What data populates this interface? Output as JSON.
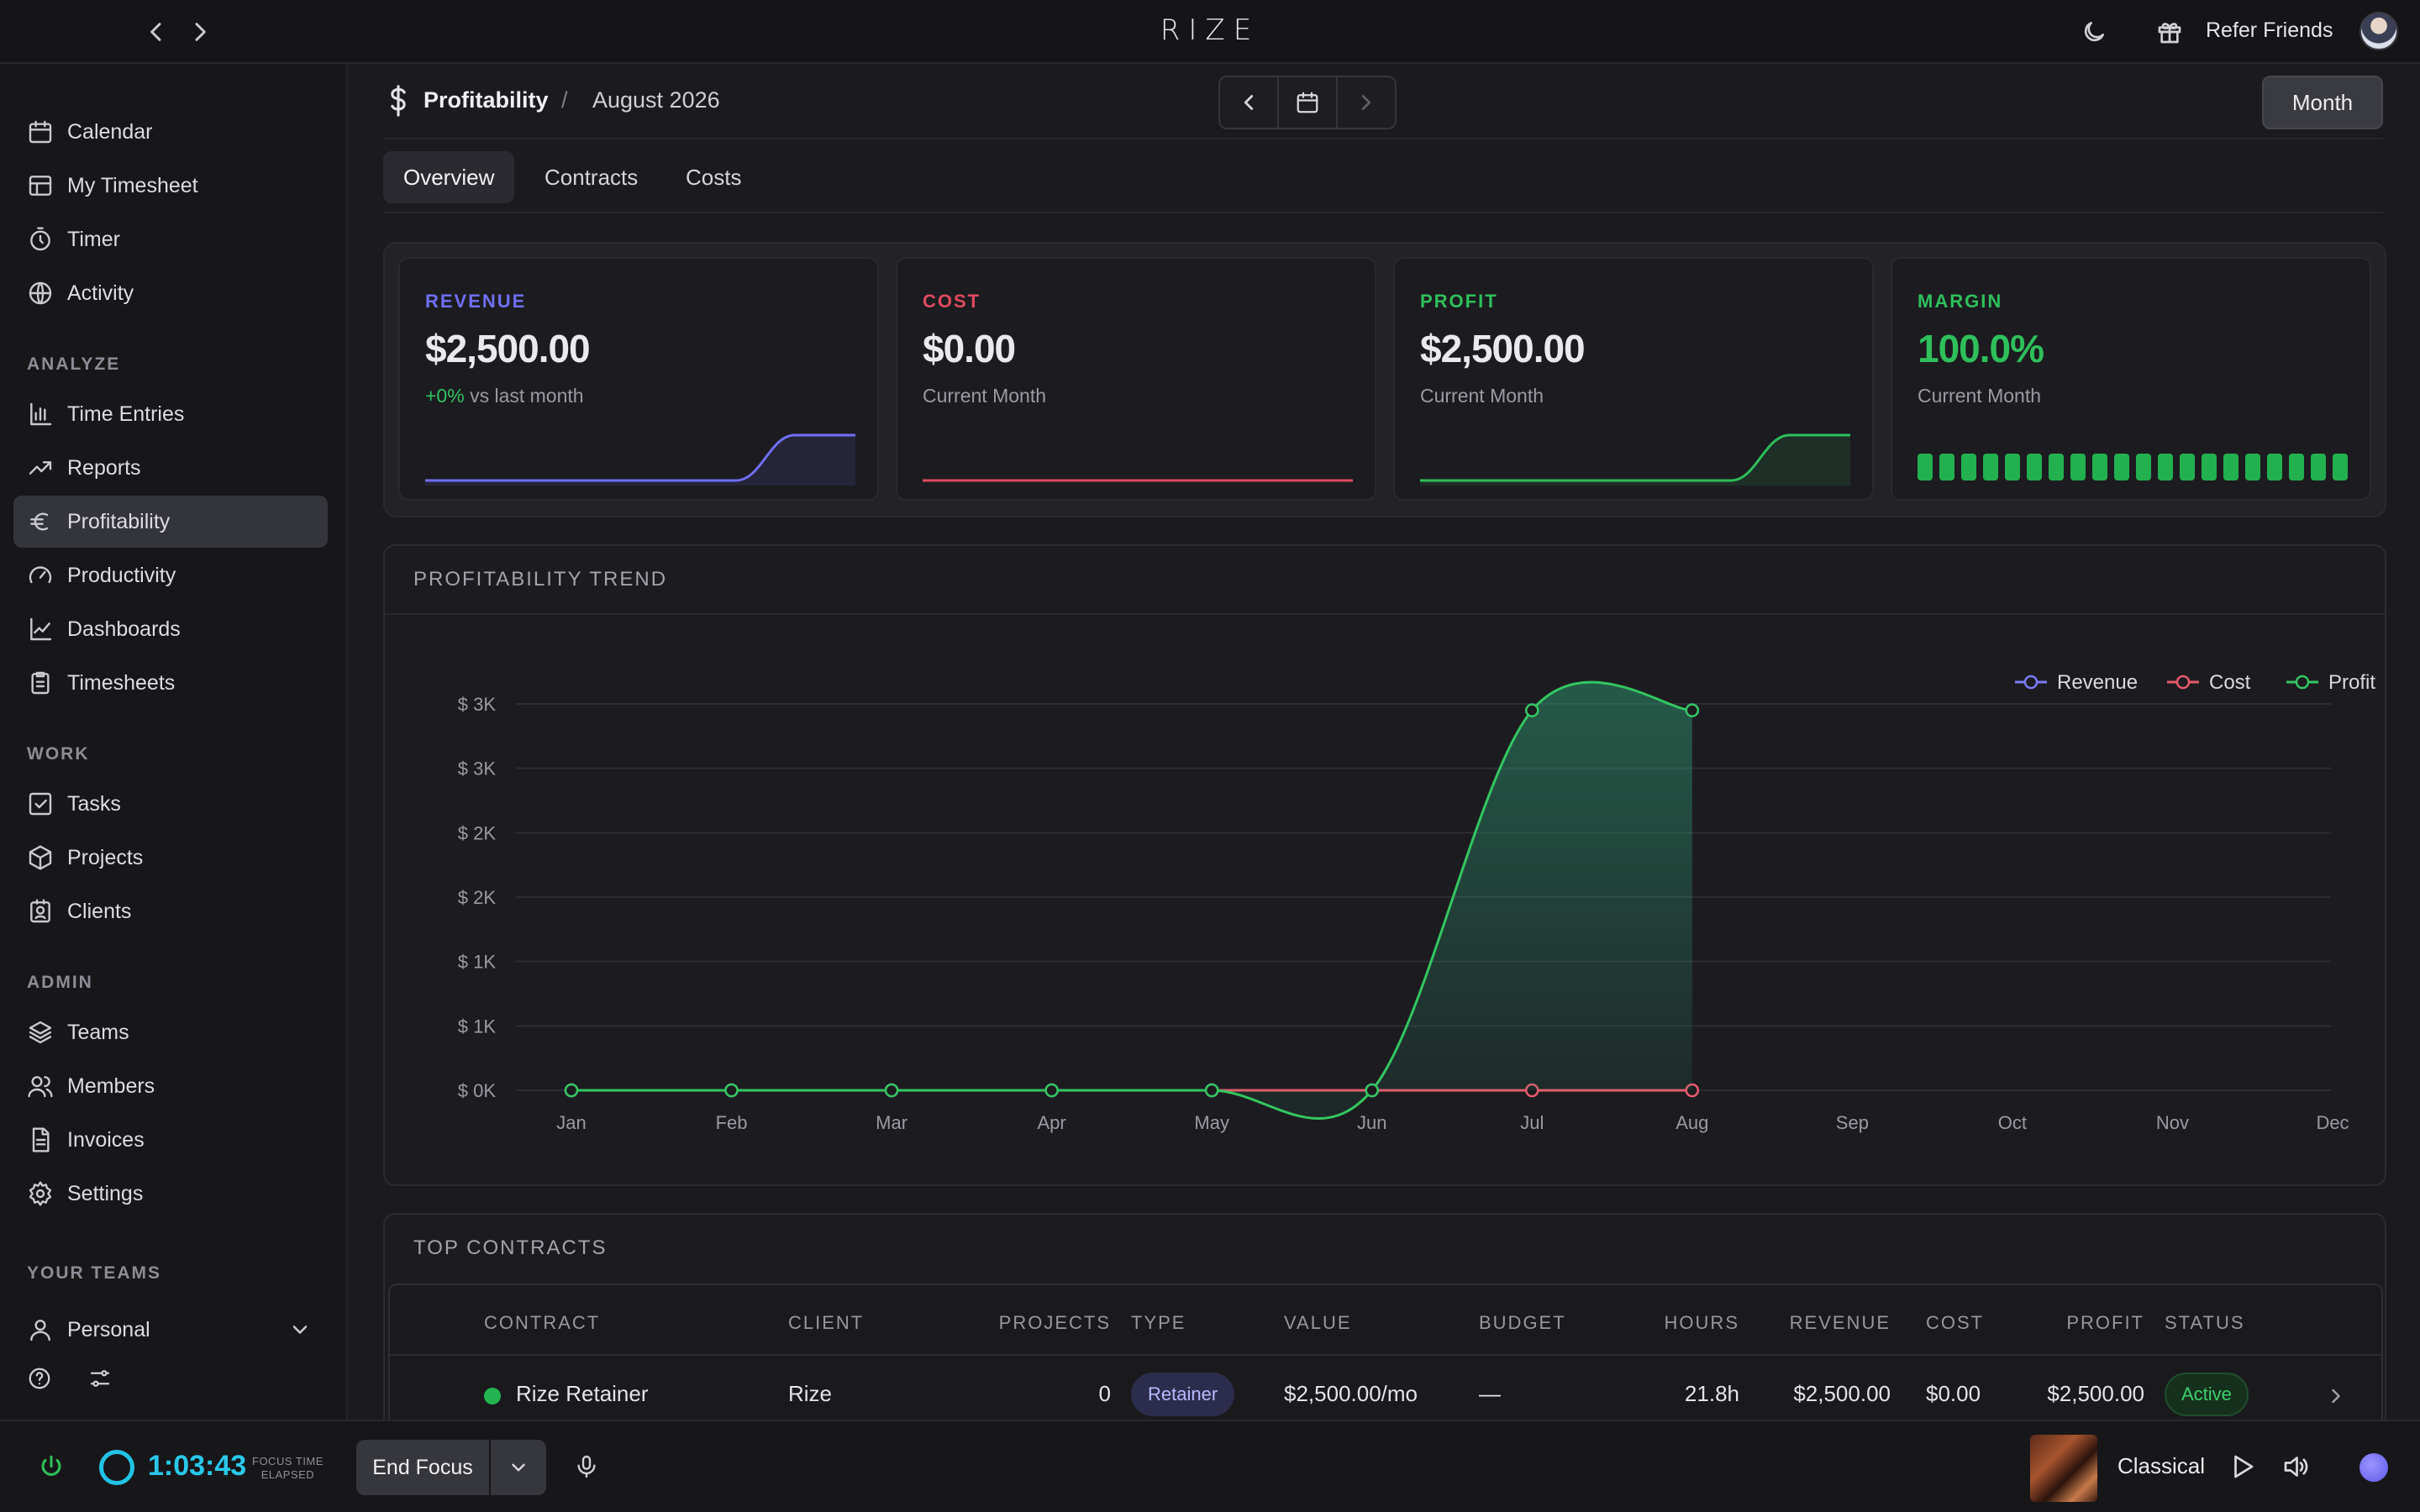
{
  "app": {
    "brand": "RIZE",
    "refer_friends": "Refer Friends"
  },
  "sidebar": {
    "items_top": [
      {
        "label": "Calendar",
        "icon": "calendar-icon"
      },
      {
        "label": "My Timesheet",
        "icon": "table-icon"
      },
      {
        "label": "Timer",
        "icon": "stopwatch-icon"
      },
      {
        "label": "Activity",
        "icon": "globe-icon"
      }
    ],
    "sections": [
      {
        "heading": "ANALYZE",
        "items": [
          {
            "label": "Time Entries",
            "icon": "bar-chart-icon"
          },
          {
            "label": "Reports",
            "icon": "trending-up-icon"
          },
          {
            "label": "Profitability",
            "icon": "euro-icon",
            "active": true
          },
          {
            "label": "Productivity",
            "icon": "gauge-icon"
          },
          {
            "label": "Dashboards",
            "icon": "line-chart-icon"
          },
          {
            "label": "Timesheets",
            "icon": "clipboard-icon"
          }
        ]
      },
      {
        "heading": "WORK",
        "items": [
          {
            "label": "Tasks",
            "icon": "checkbox-icon"
          },
          {
            "label": "Projects",
            "icon": "box-icon"
          },
          {
            "label": "Clients",
            "icon": "contact-icon"
          }
        ]
      },
      {
        "heading": "ADMIN",
        "items": [
          {
            "label": "Teams",
            "icon": "layers-icon"
          },
          {
            "label": "Members",
            "icon": "users-icon"
          },
          {
            "label": "Invoices",
            "icon": "invoice-icon"
          },
          {
            "label": "Settings",
            "icon": "gear-icon"
          }
        ]
      },
      {
        "heading": "YOUR TEAMS",
        "items": [
          {
            "label": "Personal",
            "icon": "user-icon"
          }
        ]
      }
    ]
  },
  "header": {
    "title": "Profitability",
    "separator": "/",
    "period": "August 2026",
    "period_mode": "Month"
  },
  "tabs": [
    {
      "label": "Overview",
      "active": true
    },
    {
      "label": "Contracts"
    },
    {
      "label": "Costs"
    }
  ],
  "kpis": {
    "revenue": {
      "label": "REVENUE",
      "value": "$2,500.00",
      "delta": "+0%",
      "sub": "vs last month",
      "color": "#6f6ff3"
    },
    "cost": {
      "label": "COST",
      "value": "$0.00",
      "sub": "Current Month",
      "color": "#e04a5e"
    },
    "profit": {
      "label": "PROFIT",
      "value": "$2,500.00",
      "sub": "Current Month",
      "color": "#2fbf5b"
    },
    "margin": {
      "label": "MARGIN",
      "value": "100.0%",
      "sub": "Current Month",
      "color": "#2fbf5b",
      "fill_fraction": 1.0
    }
  },
  "trend": {
    "title": "PROFITABILITY TREND",
    "chart_data": {
      "type": "area",
      "x": [
        "Jan",
        "Feb",
        "Mar",
        "Apr",
        "May",
        "Jun",
        "Jul",
        "Aug",
        "Sep",
        "Oct",
        "Nov",
        "Dec"
      ],
      "y_ticks": [
        "$ 0K",
        "$ 1K",
        "$ 1K",
        "$ 2K",
        "$ 2K",
        "$ 3K",
        "$ 3K"
      ],
      "ylim": [
        0,
        3000
      ],
      "grid": true,
      "legend_position": "top-right",
      "series": [
        {
          "name": "Revenue",
          "color": "#7b7cf5",
          "values": [
            0,
            0,
            0,
            0,
            0,
            0,
            2500,
            2500,
            null,
            null,
            null,
            null
          ]
        },
        {
          "name": "Cost",
          "color": "#e85a6c",
          "values": [
            0,
            0,
            0,
            0,
            0,
            0,
            0,
            0,
            null,
            null,
            null,
            null
          ]
        },
        {
          "name": "Profit",
          "color": "#34c660",
          "values": [
            0,
            0,
            0,
            0,
            0,
            0,
            2500,
            2500,
            null,
            null,
            null,
            null
          ]
        }
      ]
    }
  },
  "contracts": {
    "title": "TOP CONTRACTS",
    "columns": [
      "CONTRACT",
      "CLIENT",
      "PROJECTS",
      "TYPE",
      "VALUE",
      "BUDGET",
      "HOURS",
      "REVENUE",
      "COST",
      "PROFIT",
      "STATUS"
    ],
    "rows": [
      {
        "contract": "Rize Retainer",
        "client": "Rize",
        "projects": "0",
        "type": "Retainer",
        "value": "$2,500.00/mo",
        "budget": "—",
        "hours": "21.8h",
        "revenue": "$2,500.00",
        "cost": "$0.00",
        "profit": "$2,500.00",
        "status": "Active"
      }
    ]
  },
  "footer": {
    "timer": "1:03:43",
    "timer_caption_1": "FOCUS TIME",
    "timer_caption_2": "ELAPSED",
    "end_focus": "End Focus",
    "track": "Classical"
  }
}
